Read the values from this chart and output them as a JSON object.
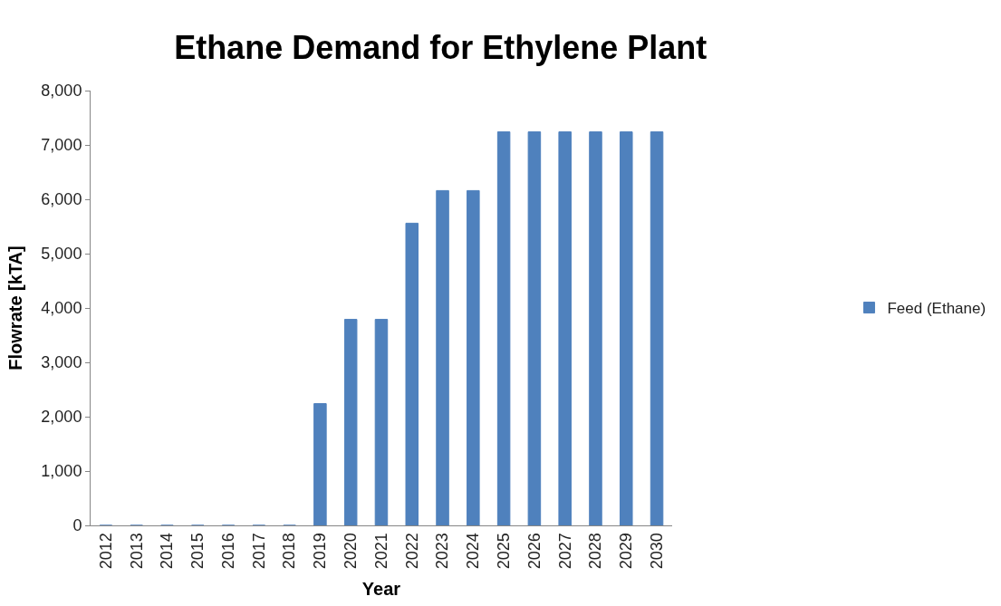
{
  "chart_data": {
    "type": "bar",
    "title": "Ethane Demand for Ethylene Plant",
    "xlabel": "Year",
    "ylabel": "Flowrate [kTA]",
    "categories": [
      "2012",
      "2013",
      "2014",
      "2015",
      "2016",
      "2017",
      "2018",
      "2019",
      "2020",
      "2021",
      "2022",
      "2023",
      "2024",
      "2025",
      "2026",
      "2027",
      "2028",
      "2029",
      "2030"
    ],
    "series": [
      {
        "name": "Feed (Ethane)",
        "color": "#4f81bd",
        "values": [
          0,
          0,
          0,
          0,
          0,
          0,
          0,
          2240,
          3790,
          3790,
          5560,
          6160,
          6160,
          7240,
          7240,
          7240,
          7240,
          7240,
          7240
        ]
      }
    ],
    "ylim": [
      0,
      8000
    ],
    "yticks": [
      {
        "value": 0,
        "label": "0"
      },
      {
        "value": 1000,
        "label": "1,000"
      },
      {
        "value": 2000,
        "label": "2,000"
      },
      {
        "value": 3000,
        "label": "3,000"
      },
      {
        "value": 4000,
        "label": "4,000"
      },
      {
        "value": 5000,
        "label": "5,000"
      },
      {
        "value": 6000,
        "label": "6,000"
      },
      {
        "value": 7000,
        "label": "7,000"
      },
      {
        "value": 8000,
        "label": "8,000"
      }
    ],
    "legend": "right"
  }
}
